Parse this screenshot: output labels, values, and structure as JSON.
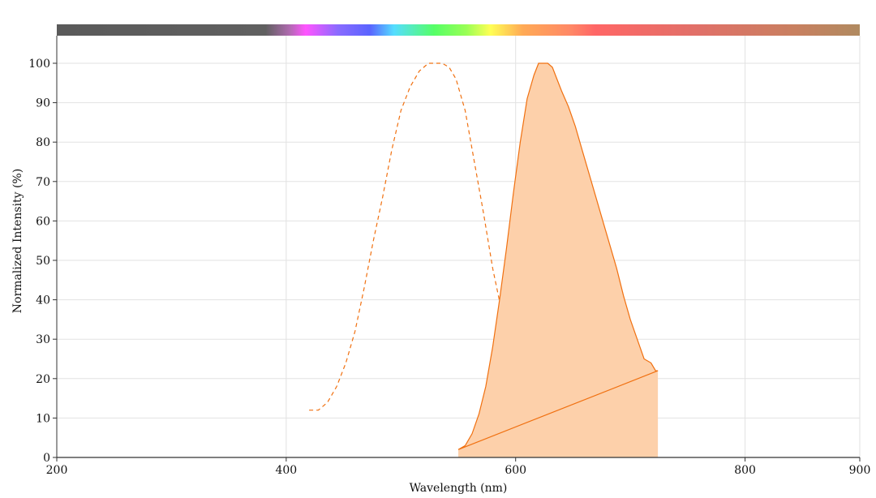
{
  "chart_data": {
    "type": "area",
    "xlabel": "Wavelength (nm)",
    "ylabel": "Normalized Intensity (%)",
    "xlim": [
      200,
      900
    ],
    "ylim": [
      0,
      100
    ],
    "x_ticks": [
      200,
      400,
      600,
      800,
      900
    ],
    "y_ticks": [
      0,
      10,
      20,
      30,
      40,
      50,
      60,
      70,
      80,
      90,
      100
    ],
    "grid": true,
    "color": "#f07010",
    "fill_color": "#fdd0aa",
    "spectrum_bar": true,
    "series": [
      {
        "style": "dashed",
        "x": [
          420,
          428,
          436,
          444,
          452,
          460,
          468,
          476,
          484,
          492,
          500,
          508,
          516,
          524,
          530,
          536,
          542,
          548,
          556,
          564,
          572,
          580,
          590,
          600,
          610,
          620,
          630,
          640,
          650,
          655
        ],
        "y": [
          12,
          12,
          14,
          18,
          24,
          32,
          43,
          55,
          66,
          78,
          88,
          94,
          98,
          100,
          100,
          100,
          99,
          96,
          88,
          75,
          62,
          48,
          34,
          23,
          15,
          11,
          9,
          8,
          8,
          8
        ]
      },
      {
        "style": "solid-filled",
        "x": [
          550,
          556,
          562,
          568,
          574,
          580,
          586,
          592,
          598,
          604,
          610,
          616,
          620,
          624,
          628,
          632,
          636,
          640,
          646,
          652,
          658,
          664,
          670,
          676,
          682,
          688,
          694,
          700,
          706,
          712,
          718,
          722,
          724,
          550
        ],
        "y": [
          2,
          3,
          6,
          11,
          18,
          28,
          40,
          53,
          67,
          80,
          91,
          97,
          100,
          100,
          100,
          99,
          96,
          93,
          89,
          84,
          78,
          72,
          66,
          60,
          54,
          48,
          41,
          35,
          30,
          25,
          24,
          22,
          22,
          2
        ]
      }
    ]
  }
}
